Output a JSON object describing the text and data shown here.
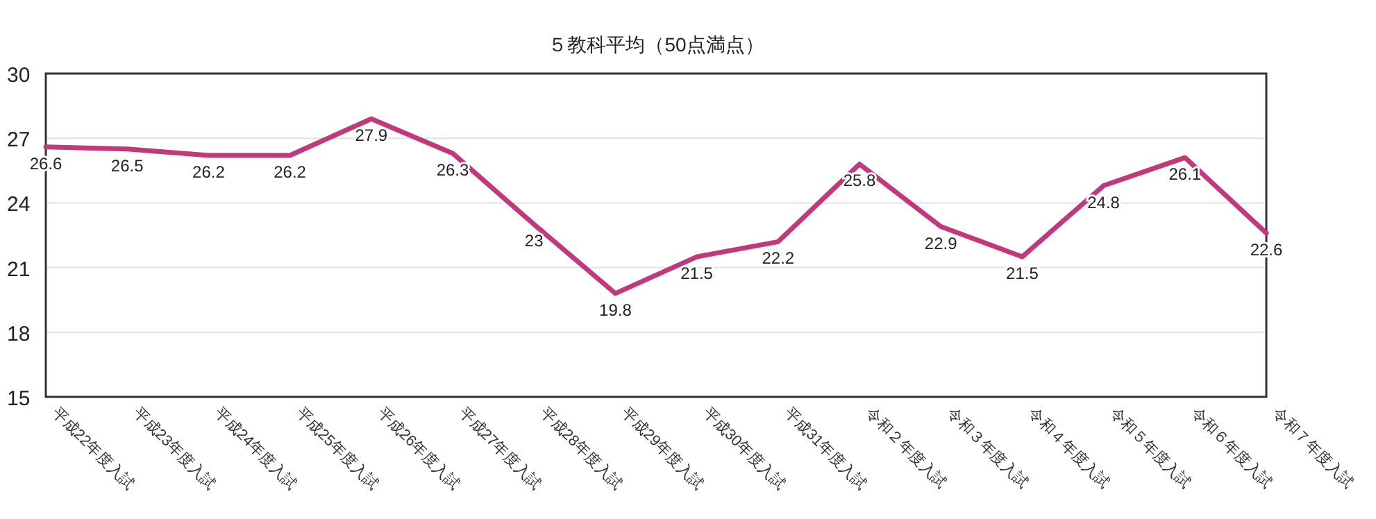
{
  "chart_data": {
    "type": "line",
    "title": "５教科平均（50点満点）",
    "categories": [
      "平成22年度入試",
      "平成23年度入試",
      "平成24年度入試",
      "平成25年度入試",
      "平成26年度入試",
      "平成27年度入試",
      "平成28年度入試",
      "平成29年度入試",
      "平成30年度入試",
      "平成31年度入試",
      "令和２年度入試",
      "令和３年度入試",
      "令和４年度入試",
      "令和５年度入試",
      "令和６年度入試",
      "令和７年度入試"
    ],
    "series": [
      {
        "color": "#c2387b",
        "values": [
          26.6,
          26.5,
          26.2,
          26.2,
          27.9,
          26.3,
          23,
          19.8,
          21.5,
          22.2,
          25.8,
          22.9,
          21.5,
          24.8,
          26.1,
          22.6
        ]
      }
    ],
    "ylim": [
      15,
      30
    ],
    "yticks": [
      15,
      18,
      21,
      24,
      27,
      30
    ],
    "grid": "y",
    "data_labels": true,
    "marker": "none",
    "line_style": "solid"
  }
}
